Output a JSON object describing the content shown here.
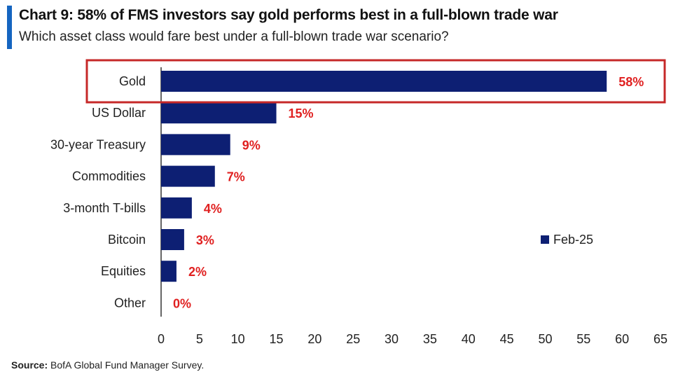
{
  "header": {
    "title": "Chart 9: 58% of FMS investors say gold performs best in a full-blown trade war",
    "subtitle": "Which asset class would fare best under a full-blown trade war scenario?"
  },
  "footer": {
    "source_label": "Source:",
    "source_text": "BofA Global Fund Manager Survey."
  },
  "colors": {
    "accent": "#1565c0",
    "bar": "#0d1f73",
    "value_label": "#e02020",
    "highlight_box": "#c62828"
  },
  "chart_data": {
    "type": "bar",
    "orientation": "horizontal",
    "categories": [
      "Gold",
      "US Dollar",
      "30-year Treasury",
      "Commodities",
      "3-month T-bills",
      "Bitcoin",
      "Equities",
      "Other"
    ],
    "series": [
      {
        "name": "Feb-25",
        "values": [
          58,
          15,
          9,
          7,
          4,
          3,
          2,
          0
        ]
      }
    ],
    "data_labels": [
      "58%",
      "15%",
      "9%",
      "7%",
      "4%",
      "3%",
      "2%",
      "0%"
    ],
    "xlim": [
      0,
      65
    ],
    "xticks": [
      0,
      5,
      10,
      15,
      20,
      25,
      30,
      35,
      40,
      45,
      50,
      55,
      60,
      65
    ],
    "grid": false,
    "legend_position": "right",
    "highlighted_category": "Gold"
  }
}
